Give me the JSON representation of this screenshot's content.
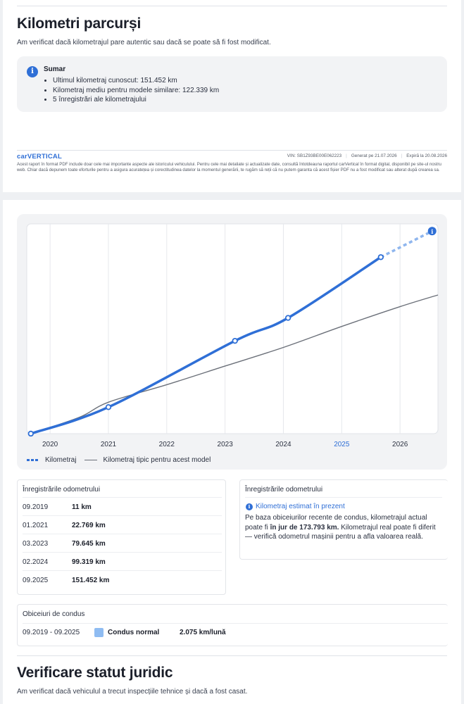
{
  "section": {
    "title": "Kilometri parcurși",
    "subtitle": "Am verificat dacă kilometrajul pare autentic sau dacă se poate să fi fost modificat."
  },
  "summary": {
    "title": "Sumar",
    "items": [
      "Ultimul kilometraj cunoscut: 151.452 km",
      "Kilometraj mediu pentru modele similare: 122.339 km",
      "5 înregistrări ale kilometrajului"
    ]
  },
  "footer": {
    "logo": "carVERTICAL",
    "vin_label": "VIN:",
    "vin": "SB1Z93BE00E062223",
    "generated_label": "Generat pe",
    "generated": "21.07.2026",
    "expires_label": "Expiră la",
    "expires": "20.08.2026",
    "disclaimer": "Acest raport în format PDF include doar cele mai importante aspecte ale istoricului vehiculului. Pentru cele mai detaliate și actualizate date, consultă întotdeauna raportul carVertical în format digital, disponibil pe site-ul nostru web. Chiar dacă depunem toate eforturile pentru a asigura acuratețea și corectitudinea datelor la momentul generării, te rugăm să reții că nu putem garanta că acest fișier PDF nu a fost modificat sau alterat după crearea sa."
  },
  "chart_data": {
    "type": "line",
    "x_ticks": [
      "2020",
      "2021",
      "2022",
      "2023",
      "2024",
      "2025",
      "2026"
    ],
    "highlight_tick": "2025",
    "xlim": [
      2019.6,
      2026.65
    ],
    "ylim": [
      0,
      180000
    ],
    "grid": true,
    "legend_placement": "bottom-left",
    "series": [
      {
        "name": "Kilometraj",
        "style": "dotted-blue",
        "color": "#2f6fd6",
        "points": [
          [
            2019.67,
            11
          ],
          [
            2021.0,
            22769
          ],
          [
            2023.17,
            79645
          ],
          [
            2024.08,
            99319
          ],
          [
            2025.67,
            151452
          ]
        ],
        "projection": [
          [
            2025.67,
            151452
          ],
          [
            2026.55,
            173793
          ]
        ]
      },
      {
        "name": "Kilometraj tipic pentru acest model",
        "style": "solid-gray",
        "color": "#6b7079",
        "points": [
          [
            2019.67,
            0
          ],
          [
            2020.5,
            14000
          ],
          [
            2021.0,
            27000
          ],
          [
            2022.0,
            42000
          ],
          [
            2023.0,
            58000
          ],
          [
            2024.0,
            74000
          ],
          [
            2025.0,
            92000
          ],
          [
            2026.0,
            109000
          ],
          [
            2026.65,
            119000
          ]
        ]
      }
    ],
    "estimate_marker": {
      "x": 2026.55,
      "y": 173793,
      "icon": "info-icon"
    }
  },
  "odometer": {
    "title": "Înregistrările odometrului",
    "rows": [
      {
        "date": "09.2019",
        "value": "11 km"
      },
      {
        "date": "01.2021",
        "value": "22.769 km"
      },
      {
        "date": "03.2023",
        "value": "79.645 km"
      },
      {
        "date": "02.2024",
        "value": "99.319 km"
      },
      {
        "date": "09.2025",
        "value": "151.452 km"
      }
    ]
  },
  "estimate": {
    "title": "Înregistrările odometrului",
    "label": "Kilometraj estimat în prezent",
    "text_before": "Pe baza obiceiurilor recente de condus, kilometrajul actual poate fi ",
    "text_bold": "în jur de 173.793 km.",
    "text_after": " Kilometrajul real poate fi diferit — verifică odometrul mașinii pentru a afla valoarea reală."
  },
  "habits": {
    "title": "Obiceiuri de condus",
    "period": "09.2019 - 09.2025",
    "type": "Condus normal",
    "rate": "2.075 km/lună",
    "swatch_color": "#8fbcf2"
  },
  "legal": {
    "title": "Verificare statut juridic",
    "subtitle": "Am verificat dacă vehiculul a trecut inspecțiile tehnice și dacă a fost casat."
  }
}
